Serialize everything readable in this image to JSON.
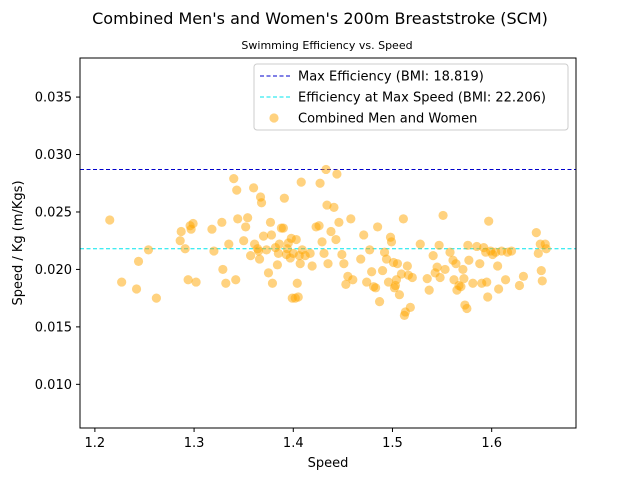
{
  "chart_data": {
    "type": "scatter",
    "suptitle": "Combined Men's and Women's 200m Breaststroke (SCM)",
    "title": "Swimming Efficiency vs. Speed",
    "xlabel": "Speed",
    "ylabel": "Speed / Kg (m/Kgs)",
    "xlim": [
      1.185,
      1.685
    ],
    "ylim": [
      0.0062,
      0.0384
    ],
    "xticks": [
      "1.2",
      "1.3",
      "1.4",
      "1.5",
      "1.6"
    ],
    "yticks": [
      "0.010",
      "0.015",
      "0.020",
      "0.025",
      "0.030",
      "0.035"
    ],
    "grid": false,
    "legend_position": "top-right",
    "reference_lines": [
      {
        "name": "Max Efficiency (BMI: 18.819)",
        "y": 0.0287,
        "color": "#0000cc",
        "style": "dashed"
      },
      {
        "name": "Efficiency at Max Speed (BMI: 22.206)",
        "y": 0.0218,
        "color": "#00e5ee",
        "style": "dashed"
      }
    ],
    "series": [
      {
        "name": "Combined Men and Women",
        "color": "#ffa500",
        "points": [
          [
            1.215,
            0.0243
          ],
          [
            1.227,
            0.0189
          ],
          [
            1.242,
            0.0183
          ],
          [
            1.244,
            0.0207
          ],
          [
            1.254,
            0.0217
          ],
          [
            1.262,
            0.0175
          ],
          [
            1.286,
            0.0225
          ],
          [
            1.287,
            0.0233
          ],
          [
            1.291,
            0.0218
          ],
          [
            1.294,
            0.0191
          ],
          [
            1.296,
            0.0238
          ],
          [
            1.297,
            0.0235
          ],
          [
            1.299,
            0.024
          ],
          [
            1.302,
            0.0189
          ],
          [
            1.318,
            0.0235
          ],
          [
            1.32,
            0.0216
          ],
          [
            1.328,
            0.0241
          ],
          [
            1.329,
            0.02
          ],
          [
            1.332,
            0.0188
          ],
          [
            1.335,
            0.0222
          ],
          [
            1.34,
            0.0279
          ],
          [
            1.342,
            0.0191
          ],
          [
            1.343,
            0.0269
          ],
          [
            1.344,
            0.0244
          ],
          [
            1.35,
            0.0225
          ],
          [
            1.352,
            0.0237
          ],
          [
            1.354,
            0.0245
          ],
          [
            1.357,
            0.0212
          ],
          [
            1.36,
            0.0271
          ],
          [
            1.361,
            0.0222
          ],
          [
            1.364,
            0.0218
          ],
          [
            1.365,
            0.0216
          ],
          [
            1.366,
            0.0209
          ],
          [
            1.367,
            0.0263
          ],
          [
            1.368,
            0.0258
          ],
          [
            1.37,
            0.0229
          ],
          [
            1.373,
            0.0217
          ],
          [
            1.375,
            0.0197
          ],
          [
            1.377,
            0.0241
          ],
          [
            1.378,
            0.023
          ],
          [
            1.379,
            0.0188
          ],
          [
            1.382,
            0.0219
          ],
          [
            1.384,
            0.0204
          ],
          [
            1.385,
            0.0214
          ],
          [
            1.386,
            0.0222
          ],
          [
            1.388,
            0.0236
          ],
          [
            1.39,
            0.0236
          ],
          [
            1.391,
            0.0262
          ],
          [
            1.393,
            0.0213
          ],
          [
            1.394,
            0.0218
          ],
          [
            1.395,
            0.0223
          ],
          [
            1.397,
            0.021
          ],
          [
            1.398,
            0.0227
          ],
          [
            1.399,
            0.0175
          ],
          [
            1.4,
            0.0214
          ],
          [
            1.402,
            0.0175
          ],
          [
            1.403,
            0.0226
          ],
          [
            1.404,
            0.0188
          ],
          [
            1.405,
            0.0176
          ],
          [
            1.406,
            0.0212
          ],
          [
            1.407,
            0.0205
          ],
          [
            1.408,
            0.0276
          ],
          [
            1.409,
            0.0217
          ],
          [
            1.412,
            0.0212
          ],
          [
            1.417,
            0.0214
          ],
          [
            1.419,
            0.0203
          ],
          [
            1.423,
            0.0237
          ],
          [
            1.426,
            0.0238
          ],
          [
            1.427,
            0.0275
          ],
          [
            1.429,
            0.0224
          ],
          [
            1.431,
            0.0214
          ],
          [
            1.433,
            0.0287
          ],
          [
            1.434,
            0.0256
          ],
          [
            1.435,
            0.0205
          ],
          [
            1.438,
            0.0233
          ],
          [
            1.441,
            0.0254
          ],
          [
            1.443,
            0.0226
          ],
          [
            1.444,
            0.0283
          ],
          [
            1.446,
            0.0241
          ],
          [
            1.449,
            0.0213
          ],
          [
            1.451,
            0.0205
          ],
          [
            1.453,
            0.0187
          ],
          [
            1.455,
            0.0194
          ],
          [
            1.458,
            0.0244
          ],
          [
            1.46,
            0.0191
          ],
          [
            1.468,
            0.0209
          ],
          [
            1.471,
            0.023
          ],
          [
            1.474,
            0.0189
          ],
          [
            1.477,
            0.0217
          ],
          [
            1.479,
            0.0198
          ],
          [
            1.481,
            0.0185
          ],
          [
            1.483,
            0.0184
          ],
          [
            1.485,
            0.0237
          ],
          [
            1.487,
            0.0172
          ],
          [
            1.49,
            0.0199
          ],
          [
            1.492,
            0.0215
          ],
          [
            1.494,
            0.0209
          ],
          [
            1.496,
            0.0189
          ],
          [
            1.498,
            0.0228
          ],
          [
            1.499,
            0.0224
          ],
          [
            1.501,
            0.0206
          ],
          [
            1.502,
            0.0184
          ],
          [
            1.503,
            0.0186
          ],
          [
            1.504,
            0.0191
          ],
          [
            1.505,
            0.0205
          ],
          [
            1.507,
            0.0178
          ],
          [
            1.509,
            0.0196
          ],
          [
            1.511,
            0.0244
          ],
          [
            1.512,
            0.016
          ],
          [
            1.513,
            0.0163
          ],
          [
            1.515,
            0.0203
          ],
          [
            1.516,
            0.0195
          ],
          [
            1.518,
            0.0167
          ],
          [
            1.52,
            0.0193
          ],
          [
            1.528,
            0.0222
          ],
          [
            1.535,
            0.0192
          ],
          [
            1.537,
            0.0182
          ],
          [
            1.541,
            0.0212
          ],
          [
            1.543,
            0.0197
          ],
          [
            1.545,
            0.0202
          ],
          [
            1.547,
            0.0221
          ],
          [
            1.548,
            0.0193
          ],
          [
            1.551,
            0.0247
          ],
          [
            1.553,
            0.02
          ],
          [
            1.558,
            0.0215
          ],
          [
            1.561,
            0.0208
          ],
          [
            1.562,
            0.0191
          ],
          [
            1.564,
            0.0205
          ],
          [
            1.565,
            0.0182
          ],
          [
            1.567,
            0.0186
          ],
          [
            1.569,
            0.0185
          ],
          [
            1.571,
            0.02
          ],
          [
            1.572,
            0.0192
          ],
          [
            1.573,
            0.0169
          ],
          [
            1.575,
            0.0166
          ],
          [
            1.576,
            0.0221
          ],
          [
            1.577,
            0.0208
          ],
          [
            1.581,
            0.0188
          ],
          [
            1.585,
            0.022
          ],
          [
            1.588,
            0.0205
          ],
          [
            1.59,
            0.0188
          ],
          [
            1.592,
            0.0219
          ],
          [
            1.594,
            0.0215
          ],
          [
            1.595,
            0.0189
          ],
          [
            1.596,
            0.0176
          ],
          [
            1.597,
            0.0242
          ],
          [
            1.599,
            0.0216
          ],
          [
            1.601,
            0.0213
          ],
          [
            1.604,
            0.0215
          ],
          [
            1.606,
            0.0203
          ],
          [
            1.607,
            0.0183
          ],
          [
            1.61,
            0.0216
          ],
          [
            1.614,
            0.0191
          ],
          [
            1.616,
            0.0215
          ],
          [
            1.62,
            0.0216
          ],
          [
            1.628,
            0.0186
          ],
          [
            1.632,
            0.0194
          ],
          [
            1.645,
            0.0232
          ],
          [
            1.647,
            0.0214
          ],
          [
            1.649,
            0.0222
          ],
          [
            1.65,
            0.0199
          ],
          [
            1.651,
            0.019
          ],
          [
            1.654,
            0.0222
          ],
          [
            1.655,
            0.0218
          ]
        ]
      }
    ]
  }
}
